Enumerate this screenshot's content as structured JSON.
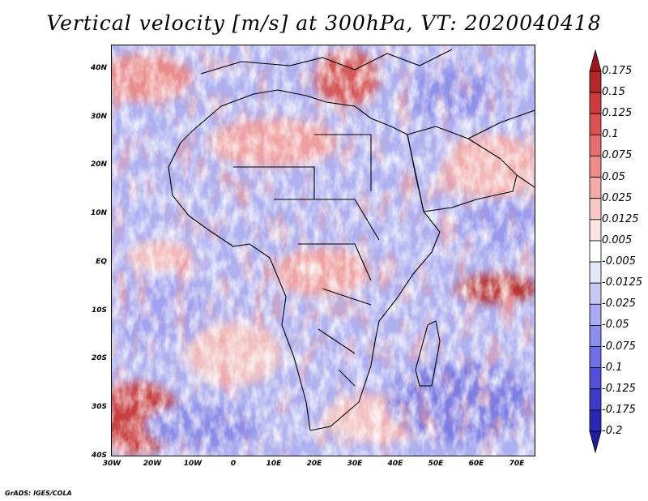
{
  "title": "Vertical velocity [m/s] at 300hPa, VT: 2020040418",
  "credit": "GrADS: IGES/COLA",
  "map": {
    "lat_labels": [
      "40N",
      "30N",
      "20N",
      "10N",
      "EQ",
      "10S",
      "20S",
      "30S",
      "40S"
    ],
    "lon_labels": [
      "30W",
      "20W",
      "10W",
      "0",
      "10E",
      "20E",
      "30E",
      "40E",
      "50E",
      "60E",
      "70E"
    ],
    "lat_range": [
      -40,
      45
    ],
    "lon_range": [
      -30,
      75
    ]
  },
  "colorbar": {
    "labels": [
      "0.175",
      "0.15",
      "0.125",
      "0.1",
      "0.075",
      "0.05",
      "0.025",
      "0.0125",
      "0.005",
      "-0.005",
      "-0.0125",
      "-0.025",
      "-0.05",
      "-0.075",
      "-0.1",
      "-0.125",
      "-0.175",
      "-0.2"
    ],
    "colors": [
      "#a0141e",
      "#b52828",
      "#cc3c3c",
      "#dc5050",
      "#e66e6e",
      "#ee8c8c",
      "#f5aaaa",
      "#f8c8c8",
      "#fbe3e3",
      "#ffffff",
      "#e6e6fa",
      "#c8c8f5",
      "#aaaaf0",
      "#8c8ceb",
      "#6e6ee6",
      "#5050dc",
      "#3c3cc8",
      "#2828b4",
      "#1e1ea0"
    ]
  }
}
